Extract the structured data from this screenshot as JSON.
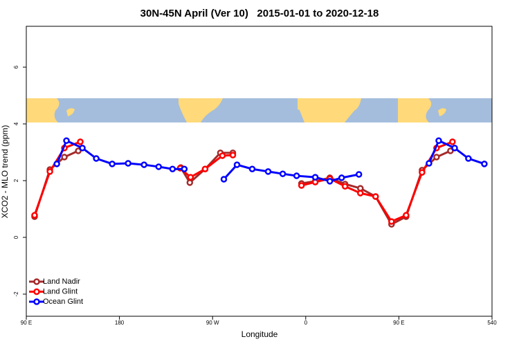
{
  "chart_data": {
    "type": "line",
    "title": "30N-45N April (Ver 10)   2015-01-01 to 2020-12-18",
    "x_label": "Longitude",
    "y_label": "XCO2 - MLO trend (ppm)",
    "xlim": [
      90,
      540
    ],
    "ylim": [
      -2.78,
      7.44
    ],
    "xticks": [
      {
        "value": 90,
        "label": "90 E"
      },
      180,
      {
        "value": 270,
        "label": "90 W"
      },
      {
        "value": 360,
        "label": "0"
      },
      {
        "value": 450,
        "label": "90 E"
      },
      540
    ],
    "yticks": [
      -2,
      0,
      2,
      4,
      6
    ],
    "legend": "bottom-left",
    "series": [
      {
        "name": "Land Nadir",
        "color": "#a52a2a",
        "x": [
          98,
          112.8,
          126.8,
          140.2,
          null,
          239.3,
          248,
          262.8,
          277.5,
          289.6,
          null,
          355.9,
          369.2,
          383.3,
          398,
          412.8,
          427.5,
          442.9,
          457,
          472.4,
          486.4,
          499.8
        ],
        "values": [
          0.73,
          2.39,
          2.83,
          3.05,
          null,
          2.46,
          1.93,
          2.41,
          2.98,
          2.98,
          null,
          1.9,
          1.98,
          2.1,
          1.88,
          1.73,
          1.44,
          0.46,
          0.73,
          2.37,
          2.83,
          3.05
        ]
      },
      {
        "name": "Land Glint",
        "color": "#ff0000",
        "x": [
          98,
          112.8,
          126.8,
          142.2,
          null,
          238.7,
          248.7,
          262.8,
          279.5,
          289.6,
          null,
          355.9,
          369.2,
          383.3,
          398,
          412.8,
          427.5,
          442.9,
          457,
          472.4,
          486.4,
          501.8
        ],
        "values": [
          0.78,
          2.32,
          3.15,
          3.37,
          null,
          2.44,
          2.12,
          2.41,
          2.88,
          2.9,
          null,
          1.83,
          1.95,
          2.07,
          1.8,
          1.56,
          1.44,
          0.56,
          0.78,
          2.29,
          3.15,
          3.37
        ]
      },
      {
        "name": "Ocean Glint",
        "color": "#0000ff",
        "x": [
          119.5,
          128.8,
          144.2,
          157.6,
          173,
          188.4,
          203.8,
          217.9,
          231.3,
          242.7,
          null,
          280.9,
          293.6,
          308.3,
          323.7,
          337.8,
          351.2,
          369.2,
          383.3,
          394.7,
          411.4,
          null,
          479.1,
          488.5,
          503.9,
          517.2,
          532.6
        ],
        "values": [
          2.59,
          3.41,
          3.15,
          2.78,
          2.59,
          2.61,
          2.56,
          2.49,
          2.41,
          2.41,
          null,
          2.05,
          2.56,
          2.41,
          2.32,
          2.24,
          2.17,
          2.12,
          1.98,
          2.1,
          2.22,
          null,
          2.61,
          3.41,
          3.15,
          2.78,
          2.59
        ]
      }
    ]
  }
}
